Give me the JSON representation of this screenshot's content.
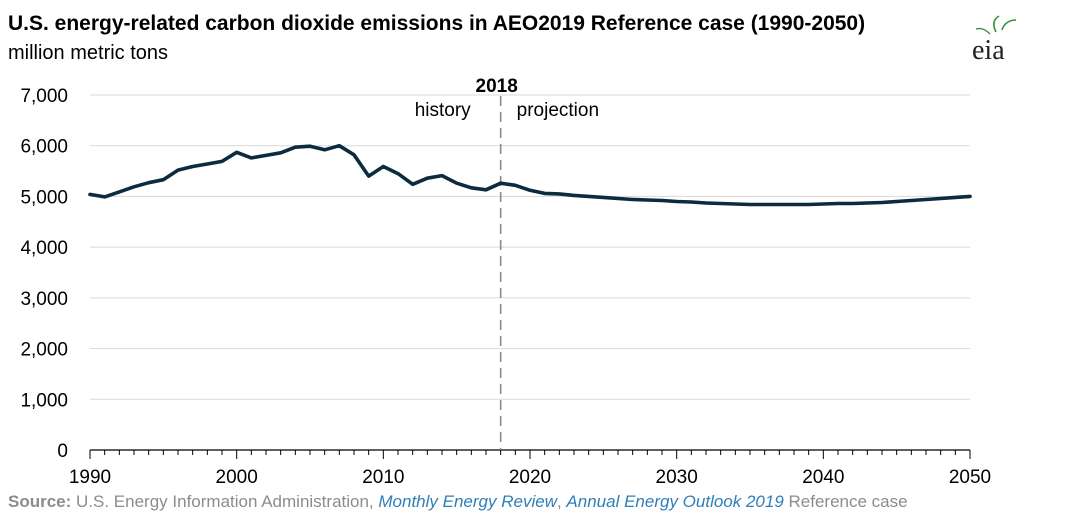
{
  "title": "U.S. energy-related carbon dioxide emissions in AEO2019 Reference case (1990-2050)",
  "subtitle": "million metric tons",
  "logo_text": "eia",
  "source": {
    "label": "Source:",
    "agency": " U.S. Energy Information Administration, ",
    "pub1": "Monthly Energy Review",
    "sep": ", ",
    "pub2": "Annual Energy Outlook 2019",
    "suffix": " Reference case"
  },
  "colors": {
    "line": "#0b2c3f",
    "grid": "#d9d9d9",
    "divider": "#8a8a8a",
    "source": "#8c8c8c",
    "link": "#2f7fb8"
  },
  "chart_data": {
    "type": "line",
    "title": "U.S. energy-related carbon dioxide emissions in AEO2019 Reference case (1990-2050)",
    "ylabel": "million metric tons",
    "xlim": [
      1990,
      2050
    ],
    "ylim": [
      0,
      7000
    ],
    "xticks": [
      1990,
      2000,
      2010,
      2020,
      2030,
      2040,
      2050
    ],
    "xtick_labels": [
      "1990",
      "2000",
      "2010",
      "2020",
      "2030",
      "2040",
      "2050"
    ],
    "yticks": [
      0,
      1000,
      2000,
      3000,
      4000,
      5000,
      6000,
      7000
    ],
    "ytick_labels": [
      "0",
      "1,000",
      "2,000",
      "3,000",
      "4,000",
      "5,000",
      "6,000",
      "7,000"
    ],
    "grid": "horizontal",
    "divider": {
      "x": 2018,
      "label": "2018",
      "left_label": "history",
      "right_label": "projection"
    },
    "series": [
      {
        "x": [
          1990,
          1991,
          1992,
          1993,
          1994,
          1995,
          1996,
          1997,
          1998,
          1999,
          2000,
          2001,
          2002,
          2003,
          2004,
          2005,
          2006,
          2007,
          2008,
          2009,
          2010,
          2011,
          2012,
          2013,
          2014,
          2015,
          2016,
          2017,
          2018,
          2019,
          2020,
          2021,
          2022,
          2023,
          2024,
          2025,
          2026,
          2027,
          2028,
          2029,
          2030,
          2031,
          2032,
          2033,
          2034,
          2035,
          2036,
          2037,
          2038,
          2039,
          2040,
          2041,
          2042,
          2043,
          2044,
          2045,
          2046,
          2047,
          2048,
          2049,
          2050
        ],
        "y": [
          5040,
          4990,
          5090,
          5190,
          5270,
          5330,
          5520,
          5590,
          5640,
          5690,
          5870,
          5760,
          5810,
          5860,
          5970,
          5990,
          5920,
          6000,
          5820,
          5400,
          5590,
          5450,
          5240,
          5360,
          5410,
          5260,
          5170,
          5130,
          5260,
          5220,
          5120,
          5060,
          5050,
          5020,
          5000,
          4980,
          4960,
          4940,
          4930,
          4920,
          4900,
          4890,
          4870,
          4860,
          4850,
          4840,
          4840,
          4840,
          4840,
          4840,
          4850,
          4860,
          4860,
          4870,
          4880,
          4900,
          4920,
          4940,
          4960,
          4980,
          5000
        ]
      }
    ]
  }
}
